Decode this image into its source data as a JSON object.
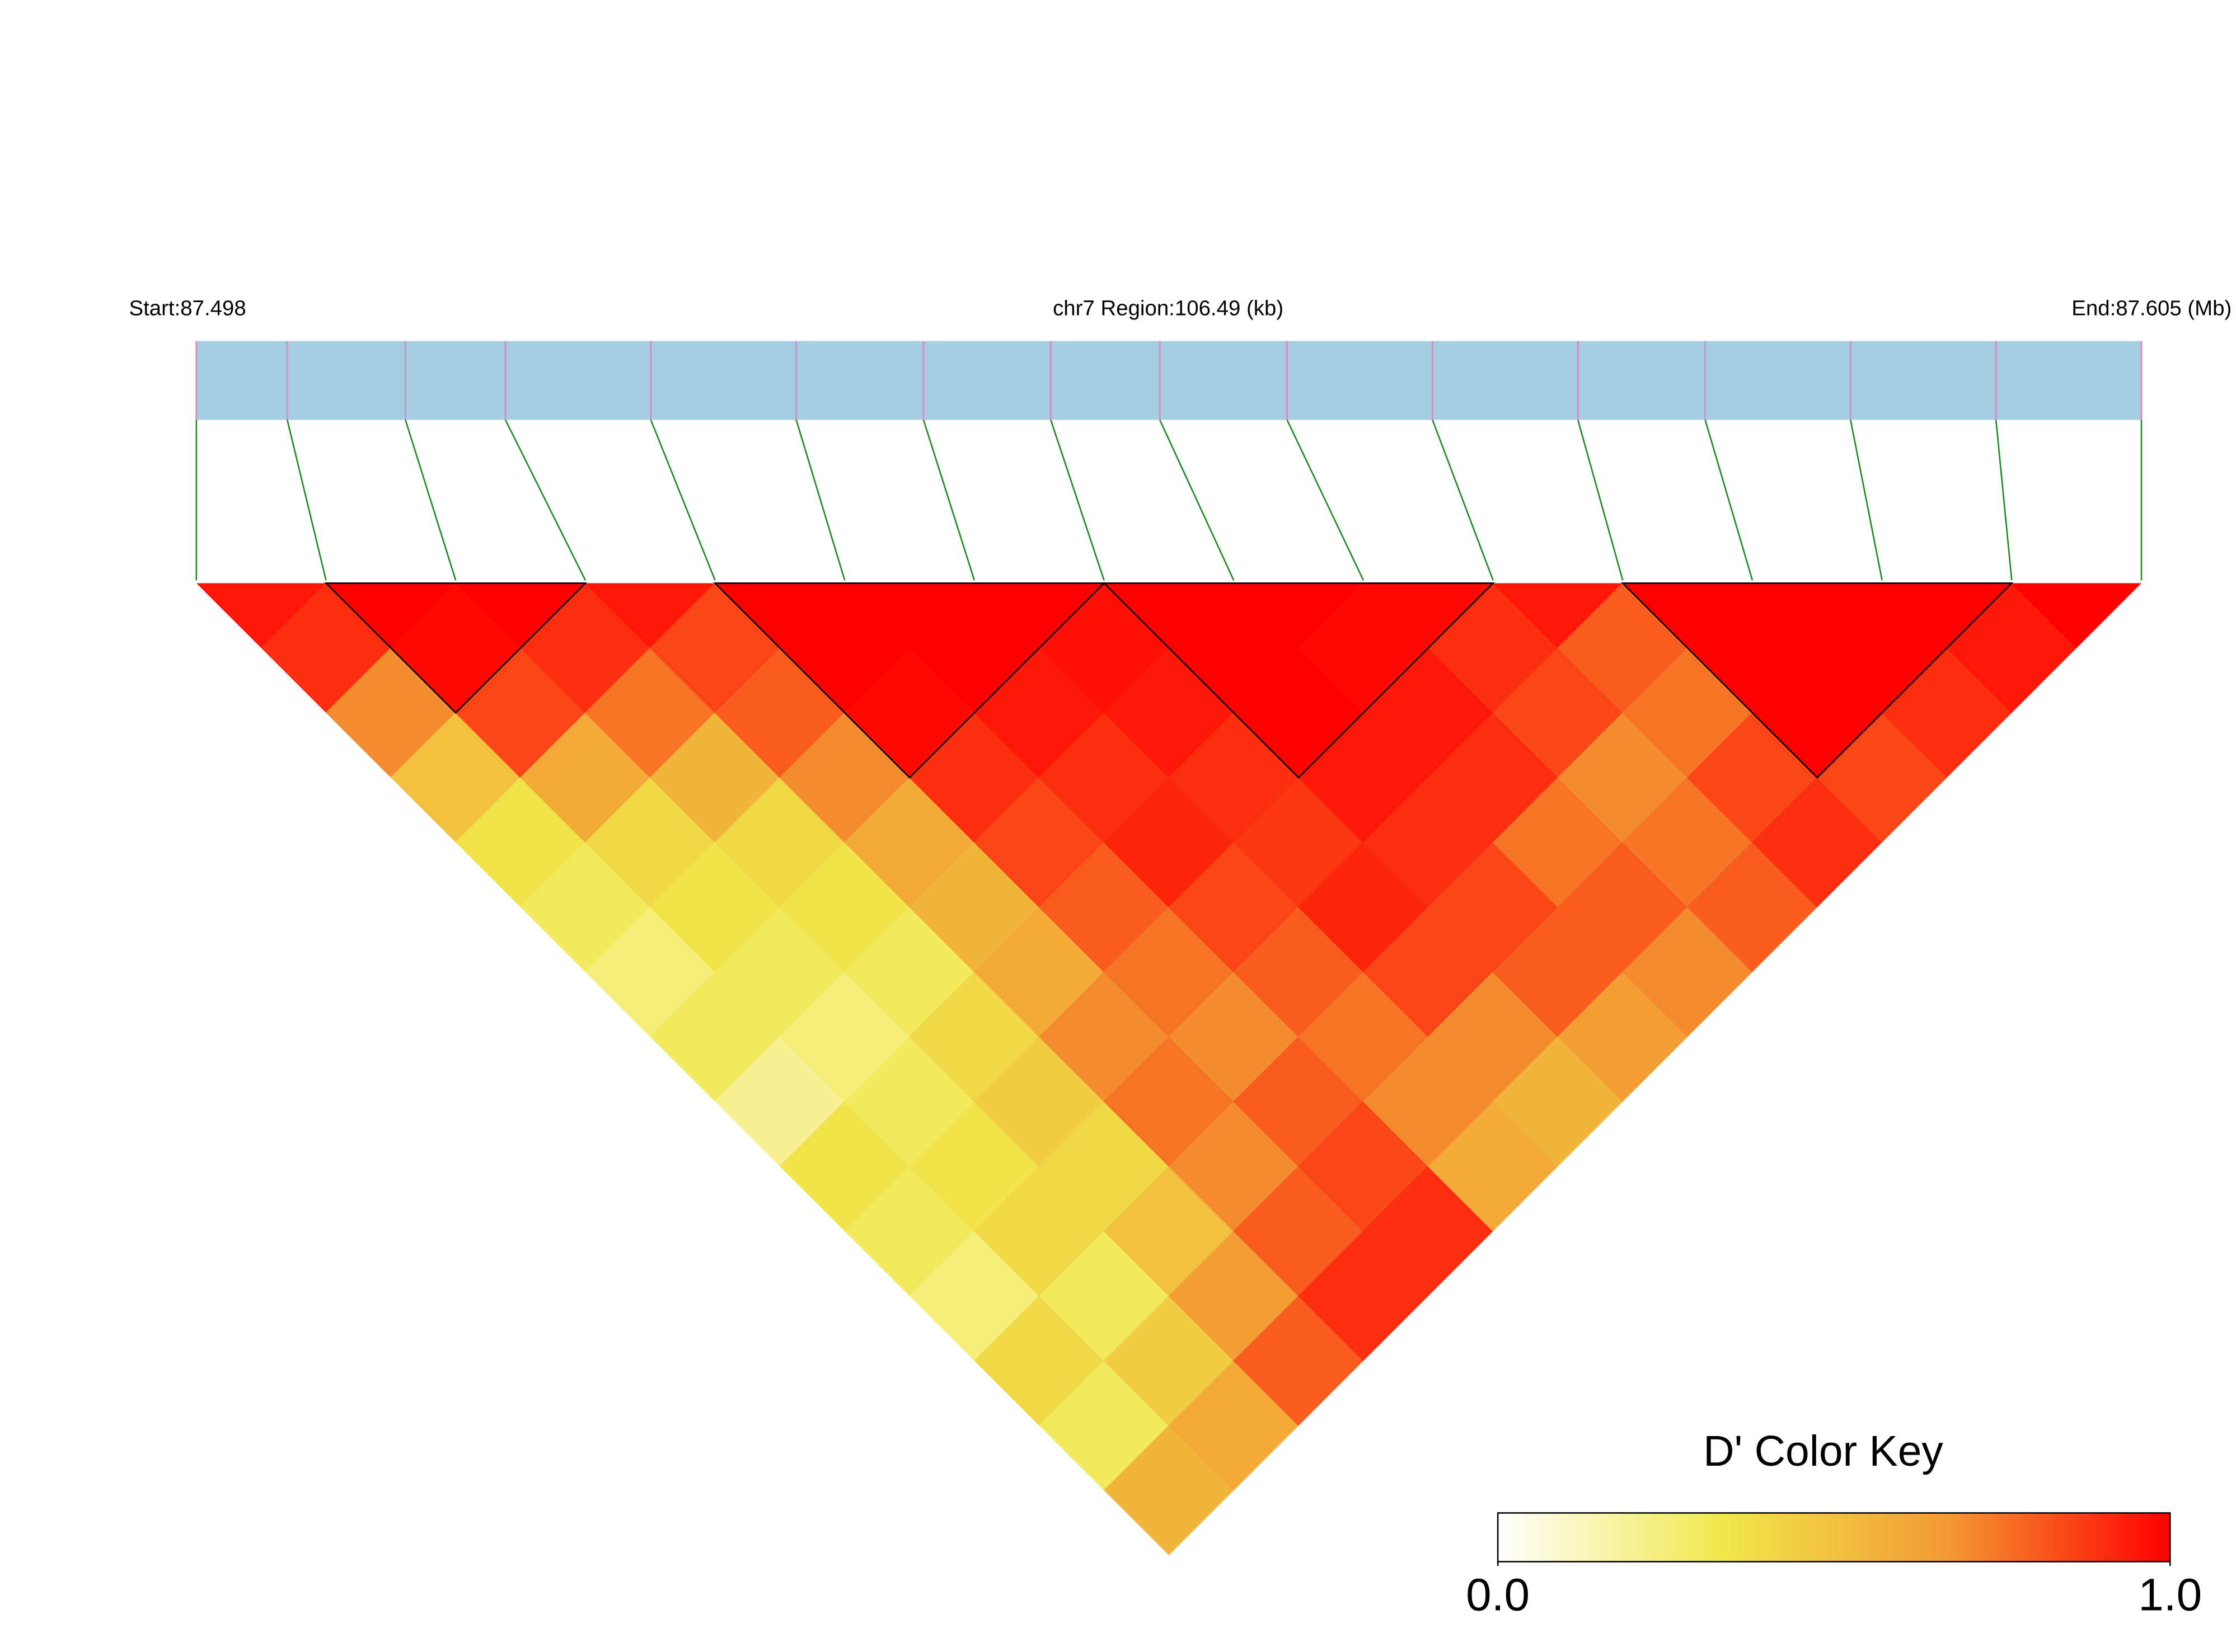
{
  "chart_data": {
    "type": "ld_heatmap",
    "start_label": "Start:87.498",
    "region_label": "chr7 Region:106.49 (kb)",
    "end_label": "End:87.605 (Mb)",
    "xlim": [
      87.498,
      87.605
    ],
    "snp_positions": [
      87.498,
      87.503,
      87.5095,
      87.515,
      87.523,
      87.531,
      87.538,
      87.545,
      87.551,
      87.558,
      87.566,
      87.574,
      87.581,
      87.589,
      87.597,
      87.605
    ],
    "dprime": [
      [
        0.95,
        0.9,
        0.7,
        0.5,
        0.35,
        0.3,
        0.25,
        0.3,
        0.2,
        0.35,
        0.3,
        0.25,
        0.4,
        0.3,
        0.55
      ],
      [
        1,
        0.98,
        0.85,
        0.6,
        0.4,
        0.35,
        0.3,
        0.25,
        0.3,
        0.35,
        0.4,
        0.3,
        0.45,
        0.6
      ],
      [
        1,
        0.9,
        0.75,
        0.55,
        0.4,
        0.35,
        0.3,
        0.4,
        0.45,
        0.4,
        0.5,
        0.65,
        0.8
      ],
      [
        0.95,
        0.85,
        0.8,
        0.7,
        0.6,
        0.55,
        0.6,
        0.7,
        0.75,
        0.7,
        0.8,
        0.9
      ],
      [
        1,
        1,
        0.98,
        0.9,
        0.85,
        0.8,
        0.75,
        0.7,
        0.8,
        0.85,
        0.9
      ],
      [
        1,
        1,
        0.95,
        0.9,
        0.92,
        0.85,
        0.8,
        0.75,
        0.7,
        0.6
      ],
      [
        1,
        0.97,
        0.95,
        0.9,
        0.88,
        0.92,
        0.85,
        0.7,
        0.55
      ],
      [
        1,
        1,
        1,
        0.95,
        0.9,
        0.85,
        0.8,
        0.65
      ],
      [
        1,
        0.98,
        0.95,
        0.9,
        0.75,
        0.8,
        0.7
      ],
      [
        0.98,
        0.9,
        0.85,
        0.7,
        0.75,
        0.8
      ],
      [
        0.95,
        0.8,
        0.75,
        0.85,
        0.9
      ],
      [
        1,
        1,
        1,
        0.85
      ],
      [
        1,
        1,
        0.9
      ],
      [
        1,
        0.95
      ],
      [
        1
      ]
    ],
    "blocks": [
      [
        1,
        3
      ],
      [
        4,
        7
      ],
      [
        7,
        10
      ],
      [
        11,
        14
      ]
    ],
    "bar_color": "#a6cee3",
    "snp_line_color": "#d98fc6",
    "connector_color": "#1a8a1a",
    "block_color": "#000000",
    "colorbar_title": "D' Color Key",
    "clim": [
      0,
      1
    ],
    "color_stops": [
      "#ffffff",
      "#f1e84c",
      "#f39a33",
      "#ff0000"
    ],
    "colorbar_ticks": [
      {
        "value": 0,
        "label": "0.0"
      },
      {
        "value": 1,
        "label": "1.0"
      }
    ]
  }
}
